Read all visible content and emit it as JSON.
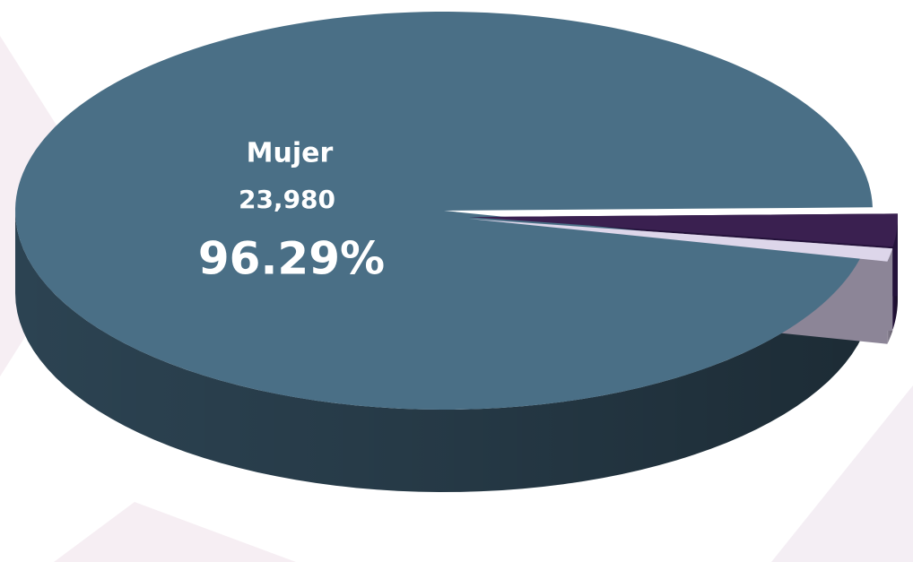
{
  "chart_data": {
    "type": "pie3d",
    "categories": [
      "Mujer",
      null,
      null
    ],
    "values": [
      96.29,
      2.65,
      1.06
    ],
    "value_labels": [
      "96.29%",
      null,
      null
    ],
    "counts": [
      23980,
      null,
      null
    ],
    "count_labels": [
      "23,980",
      null,
      null
    ],
    "colors": [
      "#4a6f86",
      "#3a2050",
      "#ddd6ea"
    ],
    "side_colors": [
      "#2c4352",
      "#24123a",
      "#8c8597"
    ]
  }
}
